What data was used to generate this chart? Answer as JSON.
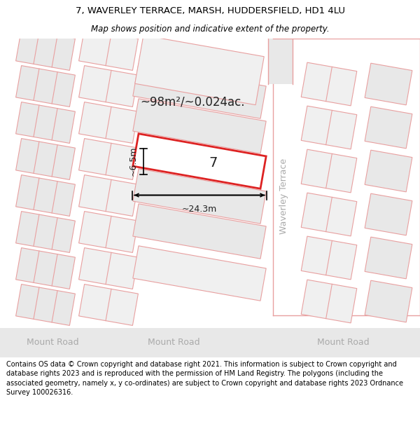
{
  "title_line1": "7, WAVERLEY TERRACE, MARSH, HUDDERSFIELD, HD1 4LU",
  "title_line2": "Map shows position and indicative extent of the property.",
  "footer_text": "Contains OS data © Crown copyright and database right 2021. This information is subject to Crown copyright and database rights 2023 and is reproduced with the permission of HM Land Registry. The polygons (including the associated geometry, namely x, y co-ordinates) are subject to Crown copyright and database rights 2023 Ordnance Survey 100026316.",
  "plot_fill": "#e8e8e8",
  "plot_fill2": "#f0f0f0",
  "line_color": "#e8a0a0",
  "highlight_border": "#dd2222",
  "road_fill": "#e8e8e8",
  "road_text": "#aaaaaa",
  "text_color": "#222222",
  "label_7": "7",
  "area_text": "~98m²/~0.024ac.",
  "dim_width": "~24.3m",
  "dim_height": "~6.5m",
  "road_label": "Mount Road",
  "street_label": "Waverley Terrace"
}
